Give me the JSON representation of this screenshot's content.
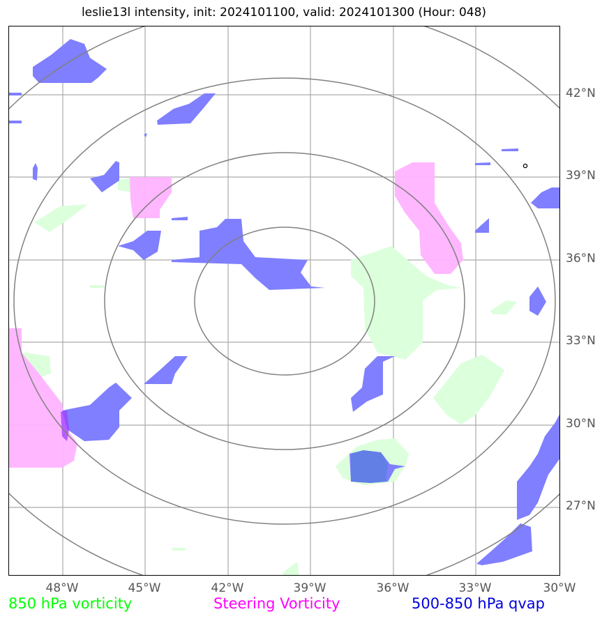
{
  "title": "leslie13l intensity, init: 2024101100, valid: 2024101300 (Hour: 048)",
  "lat_labels": [
    "42°N",
    "39°N",
    "36°N",
    "33°N",
    "30°N",
    "27°N"
  ],
  "lon_labels": [
    "48°W",
    "45°W",
    "42°W",
    "39°W",
    "36°W",
    "33°W",
    "30°W"
  ],
  "legend": {
    "vort850": "850 hPa vorticity",
    "steering": "Steering Vorticity",
    "qvap": "500-850 hPa qvap"
  },
  "colors": {
    "vort850": "#00ff00",
    "steering": "#ff00ff",
    "qvap": "#0000dd",
    "green_fill": "#dcffdc",
    "pink_fill": "#ffb3ff",
    "blue_fill": "#7f7fff",
    "grid": "#aaaaaa",
    "rings": "#808080"
  }
}
